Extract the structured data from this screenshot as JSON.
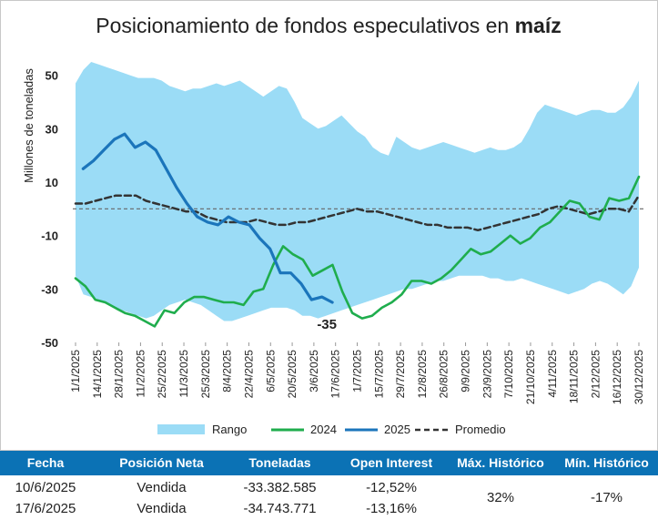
{
  "chart_data": {
    "type": "line",
    "title": "Posicionamiento de fondos especulativos en ",
    "title_bold": "maíz",
    "ylabel": "Millones de toneladas",
    "ylim": [
      -50,
      55
    ],
    "yticks": [
      50,
      30,
      10,
      -10,
      -30,
      -50
    ],
    "x_tick_labels": [
      "1/1/2025",
      "14/1/2025",
      "28/1/2025",
      "11/2/2025",
      "25/2/2025",
      "11/3/2025",
      "25/3/2025",
      "8/4/2025",
      "22/4/2025",
      "6/5/2025",
      "20/5/2025",
      "3/6/2025",
      "17/6/2025",
      "1/7/2025",
      "15/7/2025",
      "29/7/2025",
      "12/8/2025",
      "26/8/2025",
      "9/9/2025",
      "23/9/2025",
      "7/10/2025",
      "21/10/2025",
      "4/11/2025",
      "18/11/2025",
      "2/12/2025",
      "16/12/2025",
      "30/12/2025"
    ],
    "zero_line": 0,
    "annotation": "-35",
    "legend": [
      "Rango",
      "2024",
      "2025",
      "Promedio"
    ],
    "colors": {
      "rango": "#9bdcf6",
      "s2024": "#1fad4d",
      "s2025": "#1b75bb",
      "promedio": "#333333"
    },
    "range_upper": [
      47,
      52,
      55,
      54,
      53,
      52,
      51,
      50,
      49,
      49,
      49,
      48,
      46,
      45,
      44,
      45,
      45,
      46,
      47,
      46,
      47,
      48,
      46,
      44,
      42,
      44,
      46,
      45,
      40,
      34,
      32,
      30,
      31,
      33,
      35,
      32,
      29,
      27,
      23,
      21,
      20,
      27,
      25,
      23,
      22,
      23,
      24,
      25,
      24,
      23,
      22,
      21,
      22,
      23,
      22,
      22,
      23,
      25,
      30,
      36,
      39,
      38,
      37,
      36,
      35,
      36,
      37,
      37,
      36,
      36,
      38,
      42,
      48
    ],
    "range_lower": [
      -25,
      -32,
      -33,
      -34,
      -35,
      -37,
      -38,
      -39,
      -40,
      -41,
      -40,
      -38,
      -36,
      -35,
      -34,
      -35,
      -36,
      -38,
      -40,
      -42,
      -42,
      -41,
      -40,
      -39,
      -38,
      -37,
      -37,
      -37,
      -38,
      -40,
      -40,
      -41,
      -40,
      -39,
      -38,
      -37,
      -36,
      -35,
      -34,
      -33,
      -32,
      -31,
      -30,
      -30,
      -29,
      -28,
      -27,
      -27,
      -26,
      -25,
      -25,
      -25,
      -25,
      -26,
      -26,
      -27,
      -27,
      -26,
      -27,
      -28,
      -29,
      -30,
      -31,
      -32,
      -31,
      -30,
      -28,
      -27,
      -28,
      -30,
      -32,
      -29,
      -22
    ],
    "s2024": [
      -26,
      -29,
      -34,
      -35,
      -37,
      -39,
      -40,
      -42,
      -44,
      -38,
      -39,
      -35,
      -33,
      -33,
      -34,
      -35,
      -35,
      -36,
      -31,
      -30,
      -21,
      -14,
      -17,
      -19,
      -25,
      -23,
      -21,
      -31,
      -39,
      -41,
      -40,
      -37,
      -35,
      -32,
      -27,
      -27,
      -28,
      -26,
      -23,
      -19,
      -15,
      -17,
      -16,
      -13,
      -10,
      -13,
      -11,
      -7,
      -5,
      -1,
      3,
      2,
      -3,
      -4,
      4,
      3,
      4,
      12
    ],
    "s2025": [
      15,
      18,
      22,
      26,
      28,
      23,
      25,
      22,
      15,
      8,
      2,
      -3,
      -5,
      -6,
      -3,
      -5,
      -6,
      -11,
      -15,
      -24,
      -24,
      -28,
      -34,
      -33,
      -35
    ],
    "promedio": [
      2,
      2,
      3,
      4,
      5,
      5,
      5,
      3,
      2,
      1,
      0,
      -1,
      -1,
      -3,
      -4,
      -5,
      -5,
      -5,
      -4,
      -5,
      -6,
      -6,
      -5,
      -5,
      -4,
      -3,
      -2,
      -1,
      0,
      -1,
      -1,
      -2,
      -3,
      -4,
      -5,
      -6,
      -6,
      -7,
      -7,
      -7,
      -8,
      -7,
      -6,
      -5,
      -4,
      -3,
      -2,
      0,
      1,
      0,
      -1,
      -2,
      -1,
      0,
      0,
      -1,
      5
    ]
  },
  "table": {
    "headers": [
      "Fecha",
      "Posición Neta",
      "Toneladas",
      "Open Interest",
      "Máx. Histórico",
      "Mín. Histórico"
    ],
    "rows": [
      [
        "10/6/2025",
        "Vendida",
        "-33.382.585",
        "-12,52%"
      ],
      [
        "17/6/2025",
        "Vendida",
        "-34.743.771",
        "-13,16%"
      ]
    ],
    "max_historico": "32%",
    "min_historico": "-17%",
    "header_color": "#0b72b5"
  }
}
